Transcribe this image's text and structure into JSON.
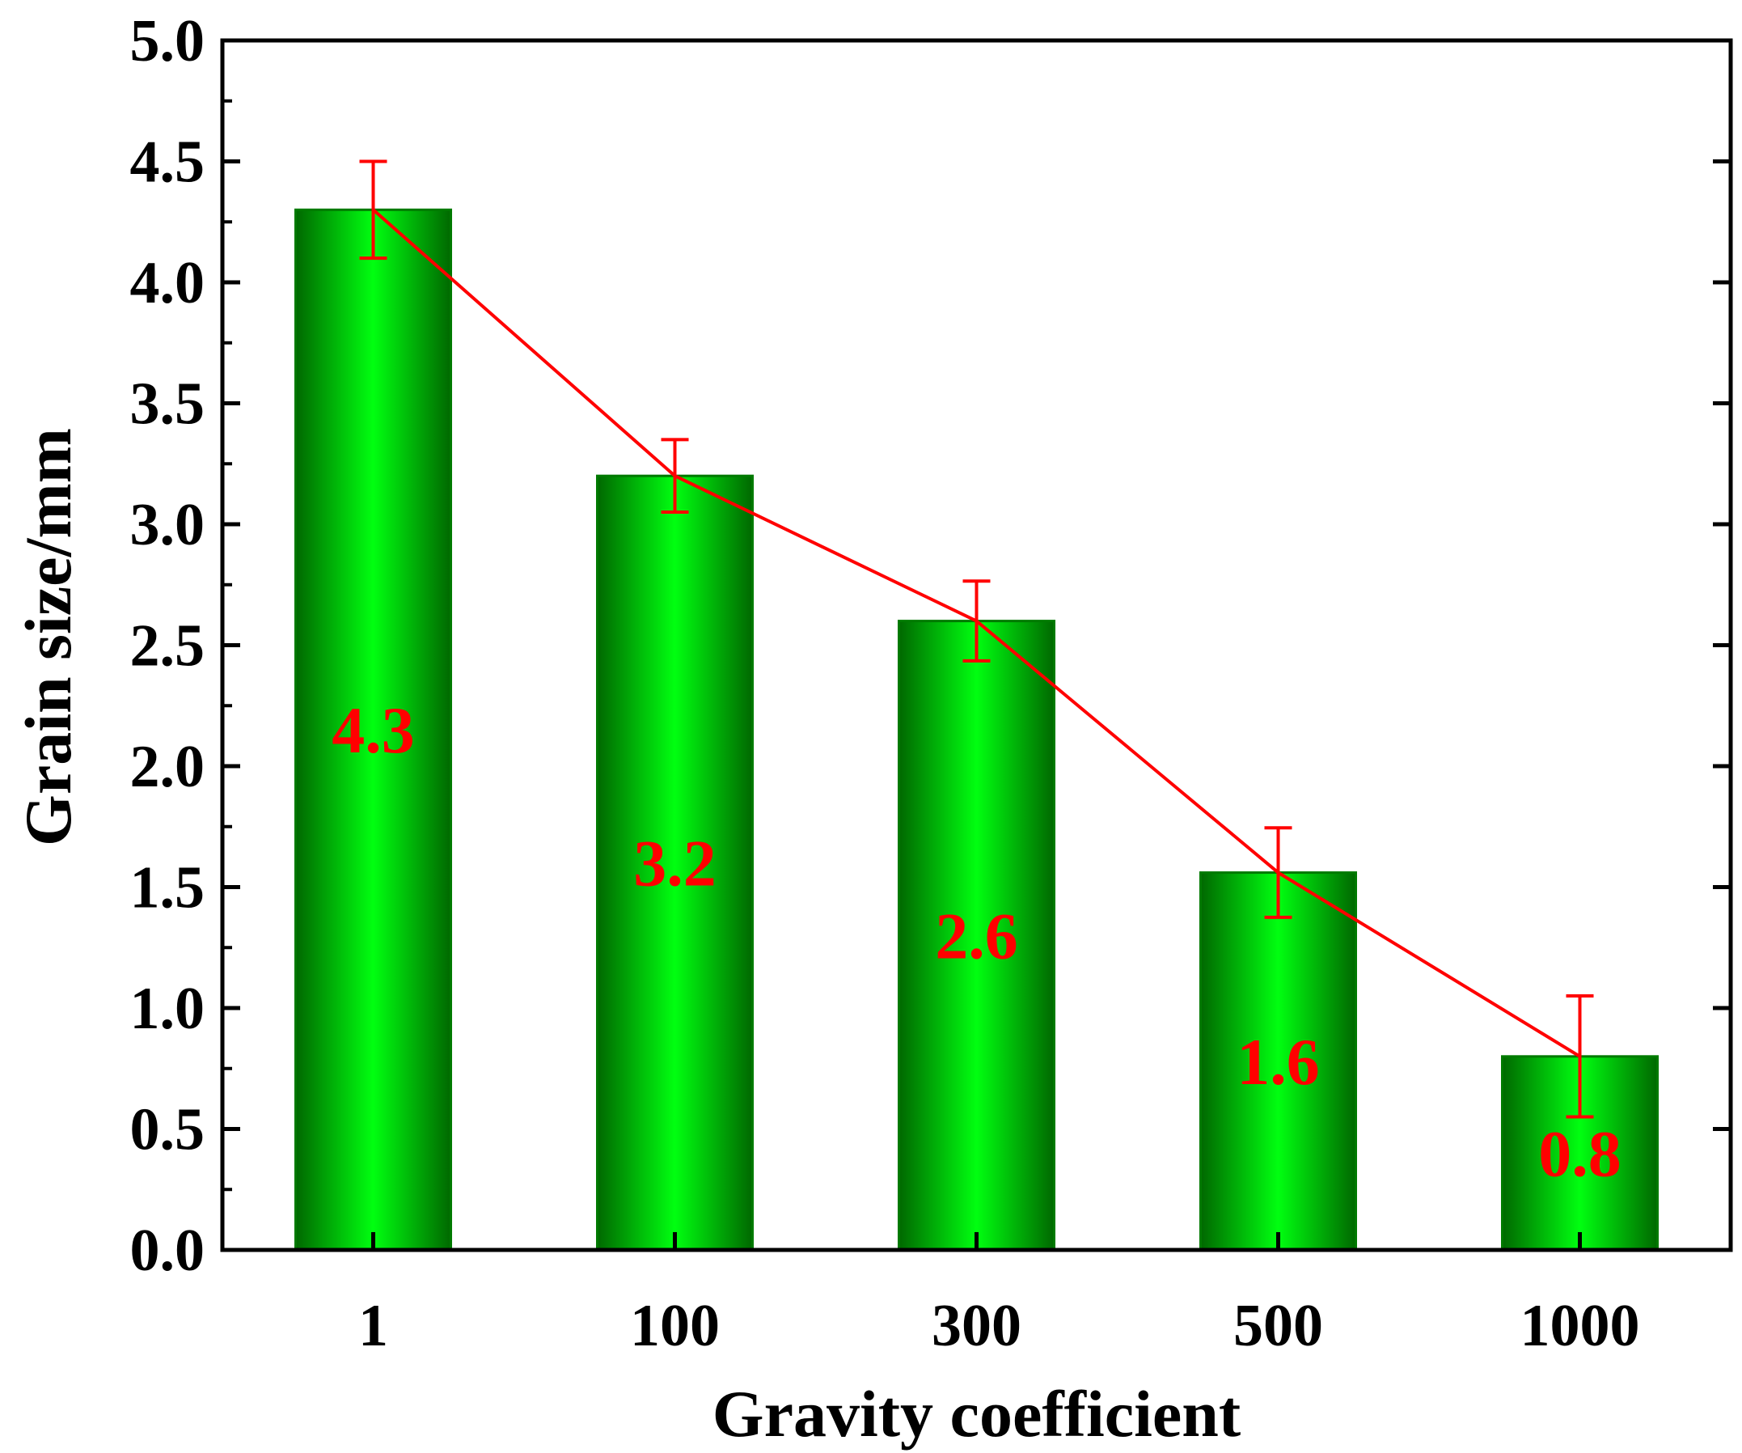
{
  "chart_data": {
    "type": "bar",
    "title": "",
    "xlabel": "Gravity coefficient",
    "ylabel": "Grain size/mm",
    "categories": [
      "1",
      "100",
      "300",
      "500",
      "1000"
    ],
    "values": [
      4.3,
      3.2,
      2.6,
      1.56,
      0.8
    ],
    "errors": [
      0.2,
      0.15,
      0.165,
      0.185,
      0.25
    ],
    "data_labels": [
      "4.3",
      "3.2",
      "2.6",
      "1.6",
      "0.8"
    ],
    "ylim": [
      0,
      5.0
    ],
    "y_ticks": [
      "0.0",
      "0.5",
      "1.0",
      "1.5",
      "2.0",
      "2.5",
      "3.0",
      "3.5",
      "4.0",
      "4.5",
      "5.0"
    ],
    "grid": false,
    "overlay_line": true,
    "colors": {
      "bar_edge": "#007a00",
      "bar_center": "#00ff10",
      "bar_dark": "#006800",
      "line": "#ff0000",
      "error_bar": "#ff0000",
      "label": "#ff0000",
      "axis": "#000000"
    }
  }
}
